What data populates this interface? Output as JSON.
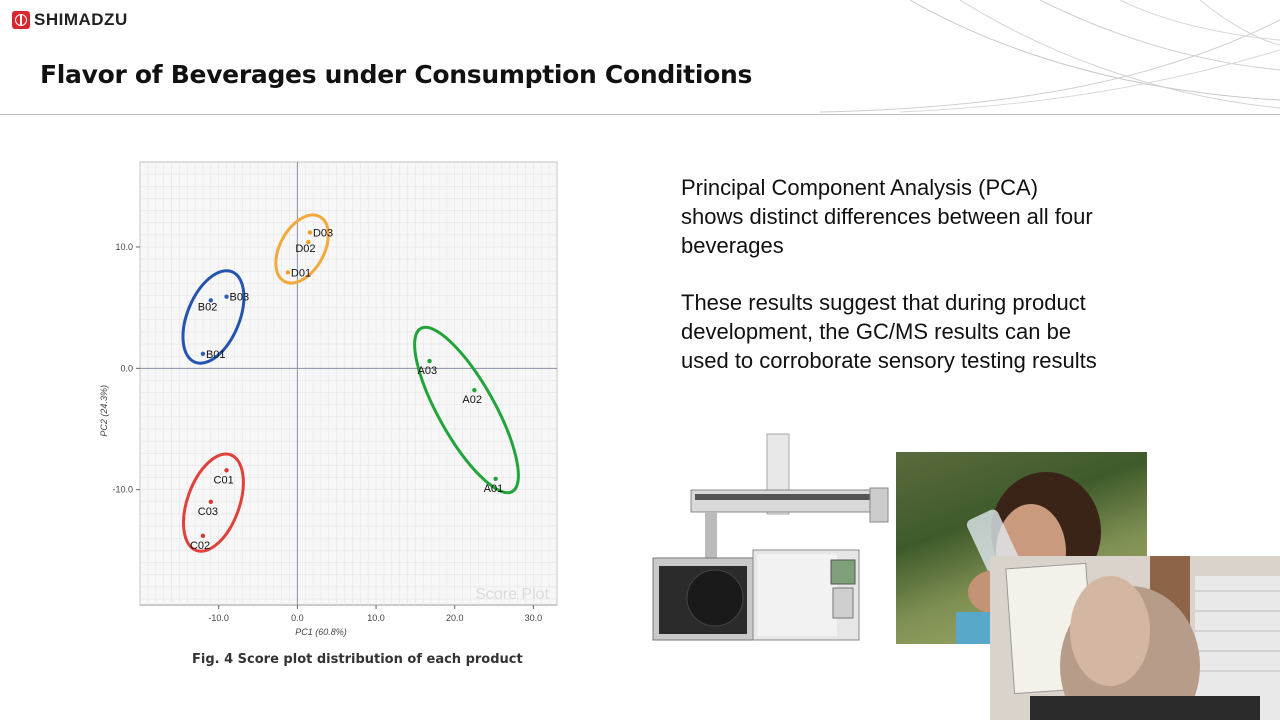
{
  "header": {
    "logo_text": "SHIMADZU",
    "title": "Flavor of Beverages under Consumption Conditions"
  },
  "chart_data": {
    "type": "scatter",
    "title": "",
    "watermark": "Score Plot",
    "xlabel": "PC1 (60.8%)",
    "ylabel": "PC2 (24.3%)",
    "xlim": [
      -20,
      33
    ],
    "ylim": [
      -19.5,
      17
    ],
    "xticks": [
      -10,
      0,
      10,
      20,
      30
    ],
    "xtick_labels": [
      "-10.0",
      "0.0",
      "10.0",
      "20.0",
      "30.0"
    ],
    "yticks": [
      10,
      0,
      -10
    ],
    "ytick_labels": [
      "10.0",
      "0.0",
      "-10.0"
    ],
    "grid": true,
    "series": [
      {
        "name": "A",
        "color": "#1fa23a",
        "ellipse_color": "#22a43b",
        "points": [
          {
            "label": "A03",
            "x": 16.8,
            "y": 0.6
          },
          {
            "label": "A02",
            "x": 22.5,
            "y": -1.8
          },
          {
            "label": "A01",
            "x": 25.2,
            "y": -9.1
          }
        ]
      },
      {
        "name": "B",
        "color": "#2f5fb3",
        "ellipse_color": "#2454b0",
        "points": [
          {
            "label": "B03",
            "x": -9.0,
            "y": 5.9
          },
          {
            "label": "B02",
            "x": -11.0,
            "y": 5.6
          },
          {
            "label": "B01",
            "x": -12.0,
            "y": 1.2
          }
        ]
      },
      {
        "name": "C",
        "color": "#d83a2e",
        "ellipse_color": "#e0413a",
        "points": [
          {
            "label": "C01",
            "x": -9.0,
            "y": -8.4
          },
          {
            "label": "C03",
            "x": -11.0,
            "y": -11.0
          },
          {
            "label": "C02",
            "x": -12.0,
            "y": -13.8
          }
        ]
      },
      {
        "name": "D",
        "color": "#f0a020",
        "ellipse_color": "#f2a93b",
        "points": [
          {
            "label": "D03",
            "x": 1.6,
            "y": 11.2
          },
          {
            "label": "D02",
            "x": 1.4,
            "y": 10.4
          },
          {
            "label": "D01",
            "x": -1.2,
            "y": 7.9
          }
        ]
      }
    ]
  },
  "figure": {
    "caption": "Fig. 4   Score plot distribution of each product"
  },
  "text": {
    "paragraph1": "Principal Component Analysis (PCA) shows distinct differences between all four beverages",
    "paragraph2": "These results suggest that during product development, the GC/MS results can be used to corroborate sensory testing results"
  }
}
